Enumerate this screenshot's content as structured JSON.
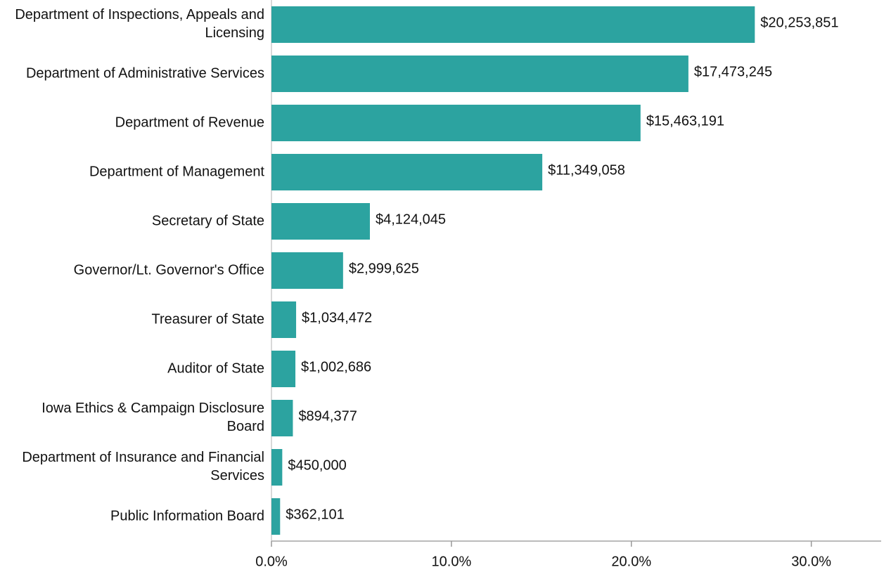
{
  "chart_data": {
    "type": "hbar",
    "categories": [
      "Department of Inspections, Appeals and Licensing",
      "Department of Administrative Services",
      "Department of Revenue",
      "Department of Management",
      "Secretary of State",
      "Governor/Lt. Governor's Office",
      "Treasurer of State",
      "Auditor of State",
      "Iowa Ethics & Campaign Disclosure Board",
      "Department of Insurance and Financial Services",
      "Public Information Board"
    ],
    "values": [
      26.86,
      23.17,
      20.51,
      15.05,
      5.47,
      3.98,
      1.37,
      1.33,
      1.19,
      0.6,
      0.48
    ],
    "data_labels": [
      "$20,253,851",
      "$17,473,245",
      "$15,463,191",
      "$11,349,058",
      "$4,124,045",
      "$2,999,625",
      "$1,034,472",
      "$1,002,686",
      "$894,377",
      "$450,000",
      "$362,101"
    ],
    "color": "#2ca3a0",
    "xlim": [
      0,
      34
    ],
    "xticks": [
      {
        "value": 0,
        "label": "0.0%"
      },
      {
        "value": 10,
        "label": "10.0%"
      },
      {
        "value": 20,
        "label": "20.0%"
      },
      {
        "value": 30,
        "label": "30.0%"
      }
    ],
    "grid": false
  }
}
